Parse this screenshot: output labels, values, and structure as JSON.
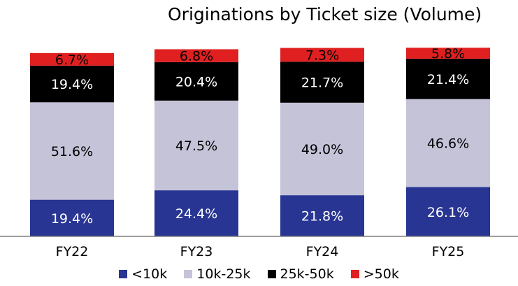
{
  "chart_data": {
    "type": "bar",
    "stacked": true,
    "title": "Originations by Ticket size (Volume)",
    "categories": [
      "FY22",
      "FY23",
      "FY24",
      "FY25"
    ],
    "series": [
      {
        "name": "<10k",
        "color": "#283593",
        "values": [
          19.4,
          24.4,
          21.8,
          26.1
        ],
        "labels": [
          "19.4%",
          "24.4%",
          "21.8%",
          "26.1%"
        ],
        "label_color": "#ffffff"
      },
      {
        "name": "10k-25k",
        "color": "#c4c3d8",
        "values": [
          51.6,
          47.5,
          49.0,
          46.6
        ],
        "labels": [
          "51.6%",
          "47.5%",
          "49.0%",
          "46.6%"
        ],
        "label_color": "#000000"
      },
      {
        "name": "25k-50k",
        "color": "#000000",
        "values": [
          19.4,
          20.4,
          21.7,
          21.4
        ],
        "labels": [
          "19.4%",
          "20.4%",
          "21.7%",
          "21.4%"
        ],
        "label_color": "#ffffff"
      },
      {
        "name": ">50k",
        "color": "#e02020",
        "values": [
          6.7,
          6.8,
          7.3,
          5.8
        ],
        "labels": [
          "6.7%",
          "6.8%",
          "7.3%",
          "5.8%"
        ],
        "label_color": "#000000"
      }
    ],
    "legend_position": "bottom",
    "grid": false
  }
}
